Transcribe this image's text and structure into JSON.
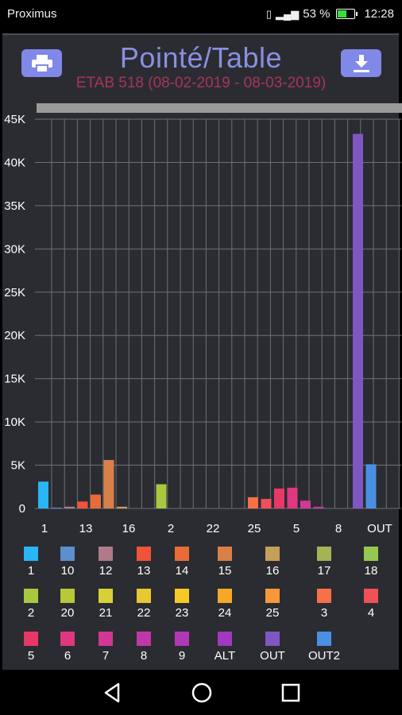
{
  "status_bar": {
    "carrier": "Proximus",
    "battery_text": "53 %",
    "battery_level": 0.53,
    "time": "12:28",
    "icons": [
      "usb-icon",
      "usb-icon",
      "nfc-icon",
      "sync-icon",
      "vibrate-icon",
      "signal-4g-icon",
      "battery-icon"
    ]
  },
  "header": {
    "title": "Pointé/Table",
    "subtitle": "ETAB 518 (08-02-2019 - 08-03-2019)",
    "print_icon": "printer-icon",
    "download_icon": "download-icon"
  },
  "colors": {
    "panel_bg": "#2b2c31",
    "title": "#8a8fe0",
    "subtitle": "#a8345a",
    "buttons": "#8088e8"
  },
  "chart_data": {
    "type": "bar",
    "title": "",
    "xlabel": "",
    "ylabel": "",
    "ylim": [
      0,
      45000
    ],
    "y_ticks": [
      0,
      5000,
      10000,
      15000,
      20000,
      25000,
      30000,
      35000,
      40000,
      45000
    ],
    "y_tick_labels": [
      "0",
      "5K",
      "10K",
      "15K",
      "20K",
      "25K",
      "30K",
      "35K",
      "40K",
      "45K"
    ],
    "x_tick_labels": [
      "1",
      "13",
      "16",
      "2",
      "22",
      "25",
      "5",
      "8",
      "OUT"
    ],
    "grid": true,
    "legend_position": "bottom",
    "categories": [
      "1",
      "10",
      "12",
      "13",
      "14",
      "15",
      "16",
      "17",
      "18",
      "2",
      "20",
      "21",
      "22",
      "23",
      "24",
      "25",
      "3",
      "4",
      "5",
      "6",
      "7",
      "8",
      "9",
      "ALT",
      "OUT",
      "OUT2"
    ],
    "values": [
      3100,
      50,
      200,
      800,
      1600,
      5600,
      200,
      0,
      0,
      2800,
      0,
      0,
      0,
      0,
      0,
      0,
      1300,
      1100,
      2300,
      2400,
      900,
      200,
      0,
      0,
      43300,
      5100
    ],
    "series_colors": [
      "#29b6f6",
      "#5b8fcf",
      "#b07a8a",
      "#f0533a",
      "#e86c3a",
      "#d9804a",
      "#c4a05a",
      "#a4b454",
      "#96c850",
      "#a8c840",
      "#b8c838",
      "#d8d038",
      "#e8c830",
      "#f8c828",
      "#f8a828",
      "#f89838",
      "#f87048",
      "#f05058",
      "#e83868",
      "#e03880",
      "#d03894",
      "#c038a8",
      "#b038b8",
      "#a038c0",
      "#7e57c2",
      "#4a90e2"
    ]
  }
}
